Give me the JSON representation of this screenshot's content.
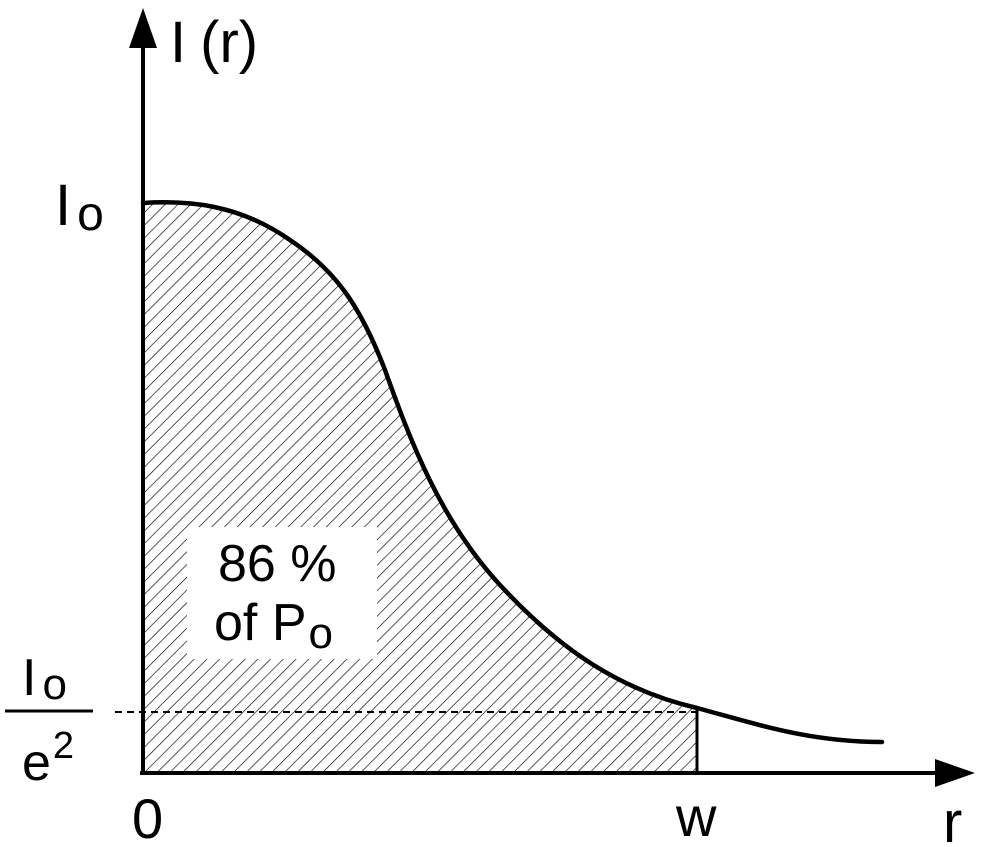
{
  "axis": {
    "y_label_main": "I",
    "y_label_arg": "(r)",
    "x_label": "r"
  },
  "ticks": {
    "y_top_main": "I",
    "y_top_sub": "o",
    "y_frac_num_main": "I",
    "y_frac_num_sub": "o",
    "y_frac_den_main": "e",
    "y_frac_den_sup": "2",
    "x_origin": "0",
    "x_w": "w"
  },
  "annotation": {
    "line1": "86 %",
    "line2_main": "of P",
    "line2_sub": "o"
  },
  "colors": {
    "ink": "#000000",
    "background": "#ffffff"
  }
}
